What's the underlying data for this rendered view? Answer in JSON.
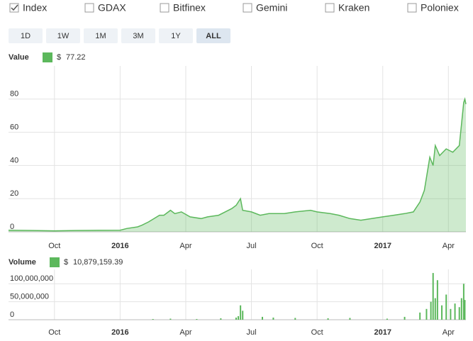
{
  "exchanges": [
    {
      "name": "Index",
      "checked": true,
      "color": "#4a9a3a"
    },
    {
      "name": "GDAX",
      "checked": false,
      "color": "#8b1a1a"
    },
    {
      "name": "Bitfinex",
      "checked": false,
      "color": "#1f4e8c"
    },
    {
      "name": "Gemini",
      "checked": false,
      "color": "#e08a1e"
    },
    {
      "name": "Kraken",
      "checked": false,
      "color": "#222222"
    },
    {
      "name": "Poloniex",
      "checked": false,
      "color": "#3c6e3c"
    }
  ],
  "ranges": [
    {
      "label": "1D",
      "active": false
    },
    {
      "label": "1W",
      "active": false
    },
    {
      "label": "1M",
      "active": false
    },
    {
      "label": "3M",
      "active": false
    },
    {
      "label": "1Y",
      "active": false
    },
    {
      "label": "ALL",
      "active": true
    }
  ],
  "chart_data": [
    {
      "type": "area",
      "legend_title": "Value",
      "legend_currency": "$",
      "legend_value": "77.22",
      "color": "#5cb85c",
      "grid": true,
      "xlim": [
        -5.1,
        15.8
      ],
      "xticks": [
        {
          "value": -3,
          "label": "Oct"
        },
        {
          "value": 0,
          "label": "2016"
        },
        {
          "value": 3,
          "label": "Apr"
        },
        {
          "value": 6,
          "label": "Jul"
        },
        {
          "value": 9,
          "label": "Oct"
        },
        {
          "value": 12,
          "label": "2017"
        },
        {
          "value": 15,
          "label": "Apr"
        }
      ],
      "ylim": [
        0,
        100
      ],
      "yticks": [
        0,
        20,
        40,
        60,
        80
      ],
      "x": [
        -5.1,
        -4,
        -3,
        -2,
        -1,
        0,
        0.3,
        0.8,
        1,
        1.3,
        1.8,
        2,
        2.3,
        2.5,
        2.8,
        3.2,
        3.7,
        4,
        4.5,
        4.8,
        5.1,
        5.3,
        5.5,
        5.6,
        6,
        6.4,
        6.8,
        7.5,
        8,
        8.7,
        9,
        9.6,
        10,
        10.5,
        11,
        11.5,
        12,
        12.5,
        13,
        13.4,
        13.7,
        13.9,
        14.15,
        14.3,
        14.4,
        14.6,
        14.9,
        15.2,
        15.5,
        15.6,
        15.7,
        15.75,
        15.8
      ],
      "values": [
        1,
        0.8,
        0.6,
        0.8,
        0.9,
        1,
        2,
        3,
        4,
        6,
        10,
        10,
        13,
        11,
        12,
        9,
        8,
        9,
        10,
        12,
        14,
        16,
        20,
        13,
        12,
        10,
        11,
        11,
        12,
        13,
        12,
        11,
        10,
        8,
        7,
        8,
        9,
        10,
        11,
        12,
        18,
        25,
        45,
        40,
        52,
        46,
        50,
        48,
        52,
        65,
        78,
        80,
        77
      ]
    },
    {
      "type": "bar",
      "legend_title": "Volume",
      "legend_currency": "$",
      "legend_value": "10,879,159.39",
      "color": "#5cb85c",
      "grid": true,
      "xlim": [
        -5.1,
        15.8
      ],
      "xticks": [
        {
          "value": -3,
          "label": "Oct"
        },
        {
          "value": 0,
          "label": "2016"
        },
        {
          "value": 3,
          "label": "Apr"
        },
        {
          "value": 6,
          "label": "Jul"
        },
        {
          "value": 9,
          "label": "Oct"
        },
        {
          "value": 12,
          "label": "2017"
        },
        {
          "value": 15,
          "label": "Apr"
        }
      ],
      "ylim": [
        0,
        140000000
      ],
      "yticks": [
        0,
        {
          "value": 50000000,
          "label": "50,000,000"
        },
        {
          "value": 100000000,
          "label": "100,000,000"
        }
      ],
      "x": [
        1.5,
        2.3,
        3.5,
        4.6,
        5.3,
        5.4,
        5.5,
        5.6,
        6.5,
        7,
        8,
        9.5,
        10.5,
        12.2,
        13,
        13.7,
        14,
        14.2,
        14.3,
        14.4,
        14.5,
        14.7,
        14.9,
        15.1,
        15.3,
        15.5,
        15.6,
        15.7,
        15.75
      ],
      "values": [
        2000000,
        3000000,
        2000000,
        4000000,
        6000000,
        10000000,
        40000000,
        25000000,
        8000000,
        6000000,
        5000000,
        4000000,
        5000000,
        3000000,
        8000000,
        20000000,
        30000000,
        50000000,
        130000000,
        60000000,
        110000000,
        40000000,
        70000000,
        30000000,
        45000000,
        35000000,
        60000000,
        100000000,
        55000000
      ]
    }
  ]
}
